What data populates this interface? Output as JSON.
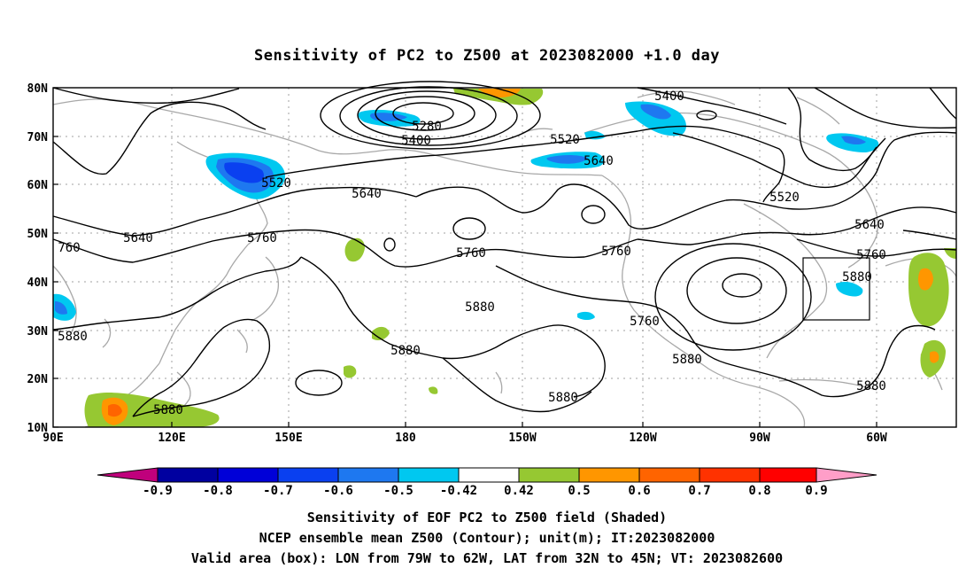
{
  "title": "Sensitivity of PC2 to Z500 at 2023082000 +1.0 day",
  "map": {
    "lat_ticks": [
      "80N",
      "70N",
      "60N",
      "50N",
      "40N",
      "30N",
      "20N",
      "10N"
    ],
    "lon_ticks": [
      "90E",
      "120E",
      "150E",
      "180",
      "150W",
      "120W",
      "90W",
      "60W"
    ],
    "contour_labels": [
      "5280",
      "5400",
      "5400",
      "5520",
      "5520",
      "5520",
      "5640",
      "5640",
      "5640",
      "5640",
      "5760",
      "5760",
      "5760",
      "5760",
      "5760",
      "5880",
      "5880",
      "5880",
      "5880",
      "5880",
      "5880",
      "5880",
      "760",
      "5880"
    ],
    "box": {
      "lon_from": "79W",
      "lon_to": "62W",
      "lat_from": "32N",
      "lat_to": "45N"
    }
  },
  "colorbar": {
    "labels": [
      "-0.9",
      "-0.8",
      "-0.7",
      "-0.6",
      "-0.5",
      "-0.42",
      "0.42",
      "0.5",
      "0.6",
      "0.7",
      "0.8",
      "0.9"
    ],
    "colors": [
      "#c0007c",
      "#0000a0",
      "#0000d8",
      "#0a40f0",
      "#1e78f0",
      "#00c8f0",
      "#ffffff",
      "#96c832",
      "#ff9600",
      "#ff6400",
      "#ff3200",
      "#ff0000",
      "#ff9ec8"
    ]
  },
  "caption": {
    "line1": "Sensitivity of EOF PC2 to Z500 field (Shaded)",
    "line2": "NCEP ensemble mean Z500 (Contour); unit(m); IT:2023082000",
    "line3": "Valid area (box): LON from 79W to 62W, LAT from 32N to 45N; VT: 2023082600"
  }
}
